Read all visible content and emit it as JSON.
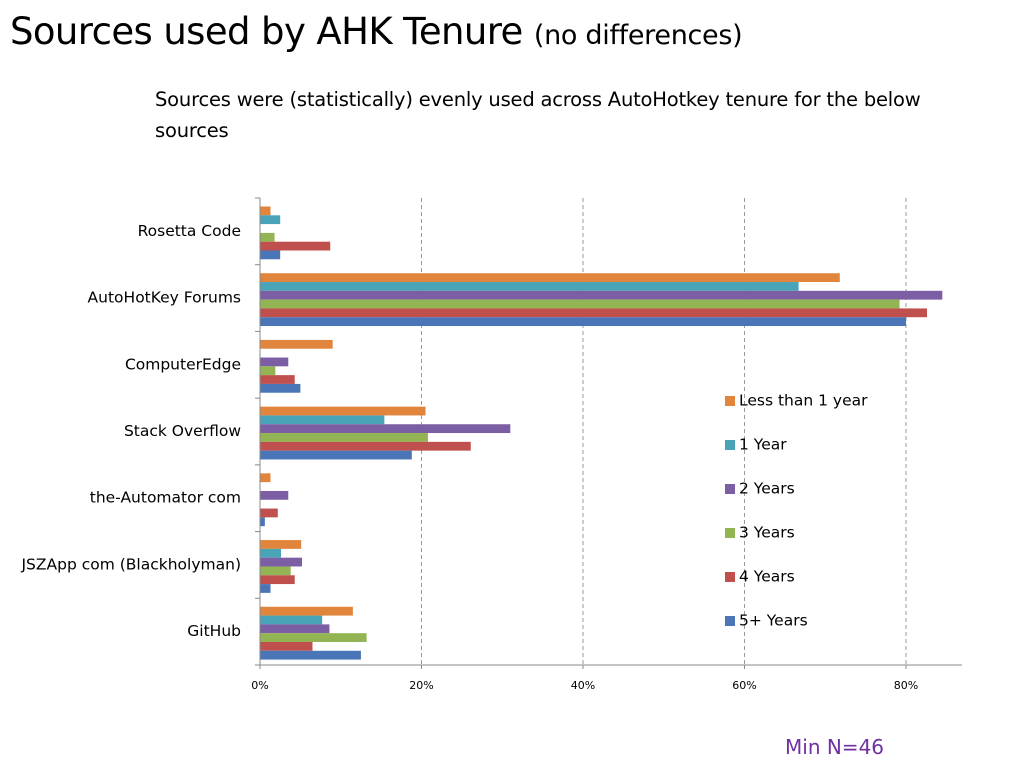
{
  "slide": {
    "title": "Sources used by AHK Tenure",
    "title_note": "(no differences)",
    "subtitle": "Sources were (statistically) evenly used across  AutoHotkey tenure for the below sources",
    "footnote": "Min N=46"
  },
  "chart_data": {
    "type": "bar",
    "orientation": "horizontal",
    "categories": [
      "Rosetta Code",
      "AutoHotKey Forums",
      "ComputerEdge",
      "Stack Overflow",
      "the-Automator com",
      "JSZApp com  (Blackholyman)",
      "GitHub"
    ],
    "series": [
      {
        "name": "Less than 1 year",
        "color": "#e0853b",
        "values": [
          1.3,
          71.8,
          9.0,
          20.5,
          1.3,
          5.1,
          11.5
        ]
      },
      {
        "name": "1 Year",
        "color": "#4aa4b8",
        "values": [
          2.5,
          66.7,
          0,
          15.4,
          0,
          2.6,
          7.7
        ]
      },
      {
        "name": "2 Years",
        "color": "#7b5ea3",
        "values": [
          0,
          84.5,
          3.5,
          31.0,
          3.5,
          5.2,
          8.6
        ]
      },
      {
        "name": "3 Years",
        "color": "#92b452",
        "values": [
          1.8,
          79.2,
          1.9,
          20.8,
          0,
          3.8,
          13.2
        ]
      },
      {
        "name": "4 Years",
        "color": "#c0504d",
        "values": [
          8.7,
          82.6,
          4.3,
          26.1,
          2.2,
          4.3,
          6.5
        ]
      },
      {
        "name": "5+ Years",
        "color": "#4a76b8",
        "values": [
          2.5,
          80.0,
          5.0,
          18.8,
          0.6,
          1.3,
          12.5
        ]
      }
    ],
    "x_ticks": [
      "0%",
      "20%",
      "40%",
      "60%",
      "80%"
    ],
    "xlim": [
      0,
      87
    ],
    "grid": "vertical dashed",
    "legend_position": "right"
  }
}
